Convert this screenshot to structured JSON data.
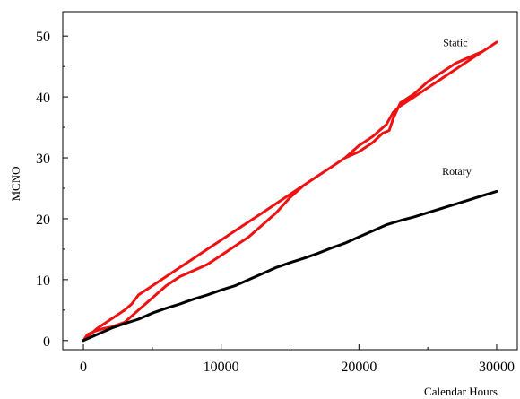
{
  "chart_data": {
    "type": "line",
    "title": "",
    "xlabel": "Calendar Hours",
    "ylabel": "MCNO",
    "xlim": [
      -1500,
      31500
    ],
    "ylim": [
      -1.5,
      54
    ],
    "grid": false,
    "legend": "none",
    "x_ticks": [
      0,
      10000,
      20000,
      30000
    ],
    "x_tick_labels": [
      "0",
      "10000",
      "20000",
      "30000"
    ],
    "y_ticks": [
      0,
      10,
      20,
      30,
      40,
      50
    ],
    "y_tick_labels": [
      "0",
      "10",
      "20",
      "30",
      "40",
      "50"
    ],
    "series": [
      {
        "name": "Static",
        "color": "#ee1111",
        "x": [
          0,
          300,
          800,
          1500,
          2000,
          3000,
          4000,
          5000,
          6000,
          7000,
          8000,
          9000,
          10000,
          11000,
          12000,
          13000,
          14000,
          15000,
          16000,
          17000,
          18000,
          19000,
          20000,
          21000,
          21700,
          22200,
          22500,
          23000,
          24000,
          25000,
          26000,
          27000,
          28000,
          29000,
          30000,
          30000,
          29000,
          28000,
          27000,
          26000,
          25000,
          24000,
          23000,
          22500,
          22000,
          21000,
          20000,
          19000,
          18000,
          17000,
          16000,
          15000,
          14000,
          13000,
          12000,
          11000,
          10000,
          9000,
          8000,
          7000,
          6000,
          5000,
          4000,
          3500,
          3000,
          2000,
          1000,
          500,
          0
        ],
        "y": [
          0,
          1,
          1.5,
          2,
          2.2,
          3,
          5,
          7,
          9,
          10.5,
          11.5,
          12.5,
          14,
          15.5,
          17,
          19,
          21,
          23.5,
          25.5,
          27,
          28.5,
          30,
          31,
          32.5,
          34,
          34.5,
          36.5,
          39,
          40.5,
          42.5,
          44,
          45.5,
          46.5,
          47.5,
          49,
          49,
          47.5,
          46,
          44.5,
          43,
          41.5,
          40,
          38.5,
          37.5,
          35.5,
          33.5,
          32,
          30,
          28.5,
          27,
          25.5,
          24,
          22.5,
          21,
          19.5,
          18,
          16.5,
          15,
          13.5,
          12,
          10.5,
          9,
          7.5,
          6,
          5,
          3.5,
          2,
          1,
          0
        ]
      },
      {
        "name": "Rotary",
        "color": "#000000",
        "x": [
          0,
          500,
          1000,
          2000,
          3000,
          4000,
          5000,
          6000,
          7000,
          8000,
          9000,
          10000,
          11000,
          12000,
          13000,
          14000,
          15000,
          16000,
          17000,
          18000,
          19000,
          20000,
          21000,
          22000,
          23000,
          24000,
          25000,
          26000,
          27000,
          28000,
          29000,
          30000
        ],
        "y": [
          0,
          0.5,
          1,
          2,
          2.8,
          3.5,
          4.5,
          5.3,
          6,
          6.8,
          7.5,
          8.3,
          9,
          10,
          11,
          12,
          12.8,
          13.5,
          14.3,
          15.2,
          16,
          17,
          18,
          19,
          19.7,
          20.3,
          21,
          21.7,
          22.4,
          23.1,
          23.8,
          24.5
        ]
      }
    ],
    "annotations": [
      {
        "text": "Static",
        "x": 27000,
        "y": 48.3
      },
      {
        "text": "Rotary",
        "x": 27100,
        "y": 27.2
      }
    ]
  }
}
